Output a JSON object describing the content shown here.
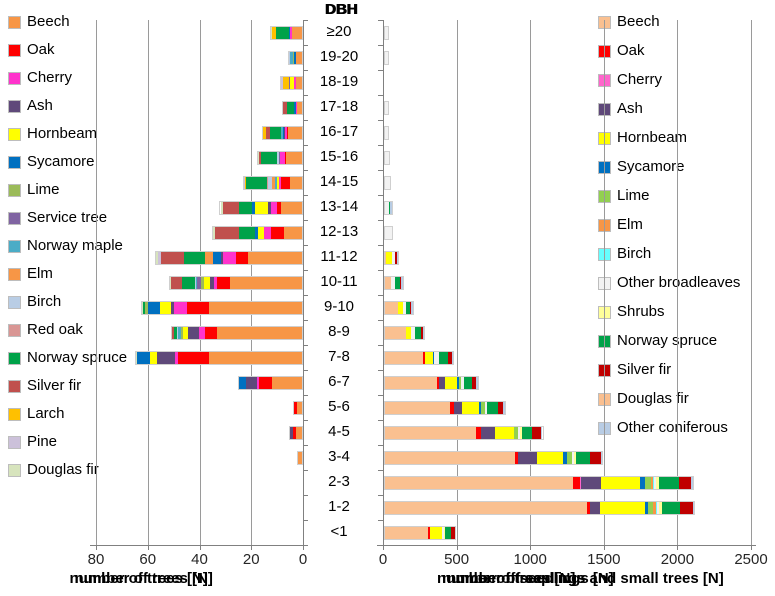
{
  "dbh_title": {
    "layers": [
      "DBH",
      "DBH"
    ]
  },
  "chart_data": [
    {
      "id": "left",
      "type": "bar",
      "orientation": "horizontal-stacked",
      "direction": "right-to-left",
      "xlabel_layers": [
        "number of trees [N]",
        "number of trees [N]"
      ],
      "axis_ticks": [
        80,
        60,
        40,
        20,
        0
      ],
      "xlim": [
        0,
        80
      ],
      "gridlines": true,
      "categories": [
        "≥20",
        "19-20",
        "18-19",
        "17-18",
        "16-17",
        "15-16",
        "14-15",
        "13-14",
        "12-13",
        "11-12",
        "10-11",
        "9-10",
        "8-9",
        "7-8",
        "6-7",
        "5-6",
        "4-5",
        "3-4",
        "2-3",
        "1-2",
        "<1"
      ],
      "series": [
        {
          "name": "Beech",
          "color": "#F79646",
          "values": [
            4,
            2.5,
            2.5,
            2,
            5.5,
            6,
            4.5,
            8,
            7,
            21,
            28,
            36,
            33,
            36,
            11.5,
            2,
            2.5,
            1.5,
            0,
            0,
            0
          ]
        },
        {
          "name": "Oak",
          "color": "#FE0000",
          "values": [
            0,
            0,
            0,
            0,
            0.5,
            0.5,
            3.5,
            1.5,
            5,
            4.5,
            5,
            8.5,
            4.5,
            12,
            5,
            1,
            1,
            0,
            0,
            0,
            0
          ]
        },
        {
          "name": "Cherry",
          "color": "#FF33CC",
          "values": [
            0.5,
            0,
            0.5,
            0.5,
            0.5,
            2,
            1,
            2.5,
            2.5,
            5,
            1,
            5,
            2.2,
            1.2,
            1,
            0,
            0,
            0,
            0,
            0,
            0
          ]
        },
        {
          "name": "Ash",
          "color": "#5F497A",
          "values": [
            0,
            0,
            0,
            0,
            0.5,
            0,
            0,
            1,
            0,
            1,
            1.5,
            1,
            4.2,
            7,
            4,
            0,
            1,
            0,
            0,
            0,
            0
          ]
        },
        {
          "name": "Hornbeam",
          "color": "#FFFF00",
          "values": [
            0,
            0,
            1.5,
            0,
            0,
            0,
            0.5,
            5,
            2.5,
            0,
            2.5,
            4.5,
            2,
            2.7,
            0,
            0,
            0,
            0,
            0,
            0,
            0
          ]
        },
        {
          "name": "Sycamore",
          "color": "#0070C0",
          "values": [
            0.5,
            0.5,
            0,
            0.5,
            0.5,
            0,
            0,
            1.5,
            1,
            3,
            0,
            4.5,
            0,
            4.7,
            3,
            0,
            0,
            0,
            0,
            0,
            0
          ]
        },
        {
          "name": "Lime",
          "color": "#9BBB59",
          "values": [
            0,
            0.5,
            0,
            0,
            0,
            0,
            0,
            0,
            0,
            0,
            1,
            1,
            1,
            0,
            0,
            0,
            0,
            0,
            0,
            0,
            0
          ]
        },
        {
          "name": "Service tree",
          "color": "#8064A2",
          "values": [
            0,
            0,
            0.5,
            0,
            0,
            0.5,
            0,
            0,
            0,
            0,
            1.5,
            0,
            0,
            0,
            0,
            0,
            0,
            0,
            0,
            0,
            0
          ]
        },
        {
          "name": "Norway maple",
          "color": "#4BACC6",
          "values": [
            0,
            1,
            0,
            0,
            0.5,
            0,
            1,
            0,
            0,
            0,
            0.5,
            0,
            1,
            0,
            0,
            0,
            0,
            0,
            0,
            0,
            0
          ]
        },
        {
          "name": "Elm",
          "color": "#F79646",
          "values": [
            0,
            0,
            0,
            0,
            0,
            0,
            1,
            0,
            0,
            3,
            0,
            0,
            0,
            0,
            0,
            0,
            0,
            0,
            0,
            0,
            0
          ]
        },
        {
          "name": "Birch",
          "color": "#B9CDE5",
          "values": [
            0,
            0.5,
            0,
            0,
            0,
            0.5,
            1.5,
            0,
            0,
            0,
            0.5,
            0,
            0.5,
            0,
            0,
            0,
            0,
            0,
            0,
            0,
            0
          ]
        },
        {
          "name": "Red oak",
          "color": "#D99694",
          "values": [
            0,
            0,
            0,
            0,
            0,
            0,
            0.5,
            0,
            0,
            0,
            0,
            0,
            0,
            0,
            0,
            0,
            0,
            0,
            0,
            0,
            0
          ]
        },
        {
          "name": "Norway spruce",
          "color": "#00A249",
          "values": [
            5,
            0,
            0,
            3,
            4.5,
            6.5,
            8,
            5,
            6.5,
            8,
            5,
            1,
            1,
            0,
            0,
            0,
            0,
            0,
            0,
            0,
            0
          ]
        },
        {
          "name": "Silver fir",
          "color": "#C0504D",
          "values": [
            0,
            0,
            0,
            1.5,
            1.5,
            0.5,
            0,
            6,
            9,
            9,
            4,
            0,
            1,
            0,
            0,
            0,
            0,
            0,
            0,
            0,
            0
          ]
        },
        {
          "name": "Larch",
          "color": "#FFC000",
          "values": [
            1.5,
            0,
            2.5,
            0,
            1,
            0,
            0.5,
            0,
            0,
            0,
            0,
            0,
            0,
            0,
            0,
            0,
            0,
            0,
            0,
            0,
            0
          ]
        },
        {
          "name": "Pine",
          "color": "#CCC1DA",
          "values": [
            0,
            0,
            0.5,
            0,
            0,
            0,
            0.5,
            0,
            0,
            1,
            0,
            0,
            0,
            0,
            0,
            0,
            0,
            0,
            0,
            0,
            0
          ]
        },
        {
          "name": "Douglas fir",
          "color": "#D7E4BD",
          "values": [
            0.5,
            0,
            0,
            0,
            0,
            0.5,
            0,
            1,
            1,
            1,
            0.5,
            0.5,
            0,
            0.5,
            0,
            0,
            0,
            0,
            0,
            0,
            0
          ]
        }
      ]
    },
    {
      "id": "right",
      "type": "bar",
      "orientation": "horizontal-stacked",
      "direction": "left-to-right",
      "xlabel_layers": [
        "number of trees [N]",
        "number of seedlings [N]",
        "number of saplings and small trees [N]"
      ],
      "axis_ticks": [
        0,
        500,
        1000,
        1500,
        2000,
        2500
      ],
      "xlim": [
        0,
        2500
      ],
      "gridlines": true,
      "categories": [
        "≥20",
        "19-20",
        "18-19",
        "17-18",
        "16-17",
        "15-16",
        "14-15",
        "13-14",
        "12-13",
        "11-12",
        "10-11",
        "9-10",
        "8-9",
        "7-8",
        "6-7",
        "5-6",
        "4-5",
        "3-4",
        "2-3",
        "1-2",
        "<1"
      ],
      "series": [
        {
          "name": "Beech",
          "color": "#FAC090",
          "values": [
            0,
            0,
            0,
            0,
            0,
            0,
            0,
            0,
            0,
            10,
            40,
            85,
            145,
            260,
            350,
            440,
            620,
            880,
            1280,
            1370,
            295
          ]
        },
        {
          "name": "Oak",
          "color": "#FF0000",
          "values": [
            0,
            0,
            0,
            0,
            0,
            0,
            0,
            0,
            0,
            0,
            0,
            0,
            0,
            10,
            15,
            30,
            30,
            25,
            45,
            20,
            10
          ]
        },
        {
          "name": "Cherry",
          "color": "#FF66CC",
          "values": [
            0,
            0,
            0,
            0,
            0,
            0,
            0,
            0,
            0,
            0,
            0,
            0,
            0,
            0,
            0,
            0,
            0,
            0,
            10,
            0,
            0
          ]
        },
        {
          "name": "Ash",
          "color": "#5F497A",
          "values": [
            0,
            0,
            0,
            0,
            0,
            0,
            0,
            0,
            0,
            0,
            0,
            0,
            0,
            0,
            40,
            55,
            95,
            125,
            130,
            70,
            0
          ]
        },
        {
          "name": "Hornbeam",
          "color": "#FFFF00",
          "values": [
            0,
            0,
            0,
            0,
            0,
            0,
            0,
            0,
            0,
            35,
            0,
            35,
            30,
            55,
            85,
            115,
            135,
            180,
            270,
            305,
            80
          ]
        },
        {
          "name": "Sycamore",
          "color": "#0070C0",
          "values": [
            0,
            0,
            0,
            0,
            0,
            0,
            0,
            0,
            0,
            0,
            0,
            0,
            0,
            10,
            15,
            15,
            0,
            25,
            35,
            25,
            0
          ]
        },
        {
          "name": "Lime",
          "color": "#92D050",
          "values": [
            0,
            0,
            0,
            0,
            0,
            0,
            0,
            0,
            0,
            0,
            0,
            0,
            0,
            0,
            10,
            25,
            25,
            35,
            40,
            30,
            0
          ]
        },
        {
          "name": "Elm",
          "color": "#F79646",
          "values": [
            0,
            0,
            0,
            0,
            0,
            0,
            0,
            0,
            0,
            0,
            0,
            0,
            0,
            0,
            0,
            0,
            0,
            0,
            10,
            20,
            0
          ]
        },
        {
          "name": "Birch",
          "color": "#66FFFF",
          "values": [
            0,
            0,
            0,
            0,
            0,
            0,
            0,
            0,
            0,
            0,
            0,
            0,
            0,
            0,
            0,
            0,
            0,
            0,
            10,
            10,
            0
          ]
        },
        {
          "name": "Other broadleaves",
          "color": "#F2F2F2",
          "values": [
            20,
            20,
            0,
            20,
            20,
            25,
            35,
            25,
            50,
            25,
            30,
            25,
            30,
            35,
            20,
            15,
            15,
            15,
            10,
            10,
            15
          ]
        },
        {
          "name": "Shrubs",
          "color": "#FFFF99",
          "values": [
            0,
            0,
            0,
            0,
            0,
            0,
            0,
            0,
            0,
            0,
            0,
            0,
            0,
            0,
            0,
            0,
            10,
            15,
            25,
            25,
            10
          ]
        },
        {
          "name": "Norway spruce",
          "color": "#00A249",
          "values": [
            0,
            0,
            0,
            0,
            0,
            0,
            0,
            10,
            0,
            0,
            30,
            25,
            40,
            60,
            55,
            75,
            70,
            95,
            130,
            120,
            40
          ]
        },
        {
          "name": "Silver fir",
          "color": "#C00000",
          "values": [
            0,
            0,
            0,
            0,
            0,
            0,
            0,
            0,
            0,
            10,
            10,
            10,
            10,
            25,
            30,
            35,
            60,
            70,
            85,
            85,
            25
          ]
        },
        {
          "name": "Douglas fir",
          "color": "#FABF8F",
          "values": [
            0,
            0,
            0,
            0,
            0,
            0,
            0,
            0,
            0,
            0,
            0,
            0,
            0,
            0,
            0,
            0,
            0,
            0,
            0,
            0,
            0
          ]
        },
        {
          "name": "Other coniferous",
          "color": "#B8CCE4",
          "values": [
            0,
            0,
            0,
            0,
            0,
            0,
            0,
            10,
            0,
            10,
            10,
            10,
            10,
            10,
            10,
            10,
            10,
            10,
            10,
            10,
            0
          ]
        }
      ]
    }
  ]
}
